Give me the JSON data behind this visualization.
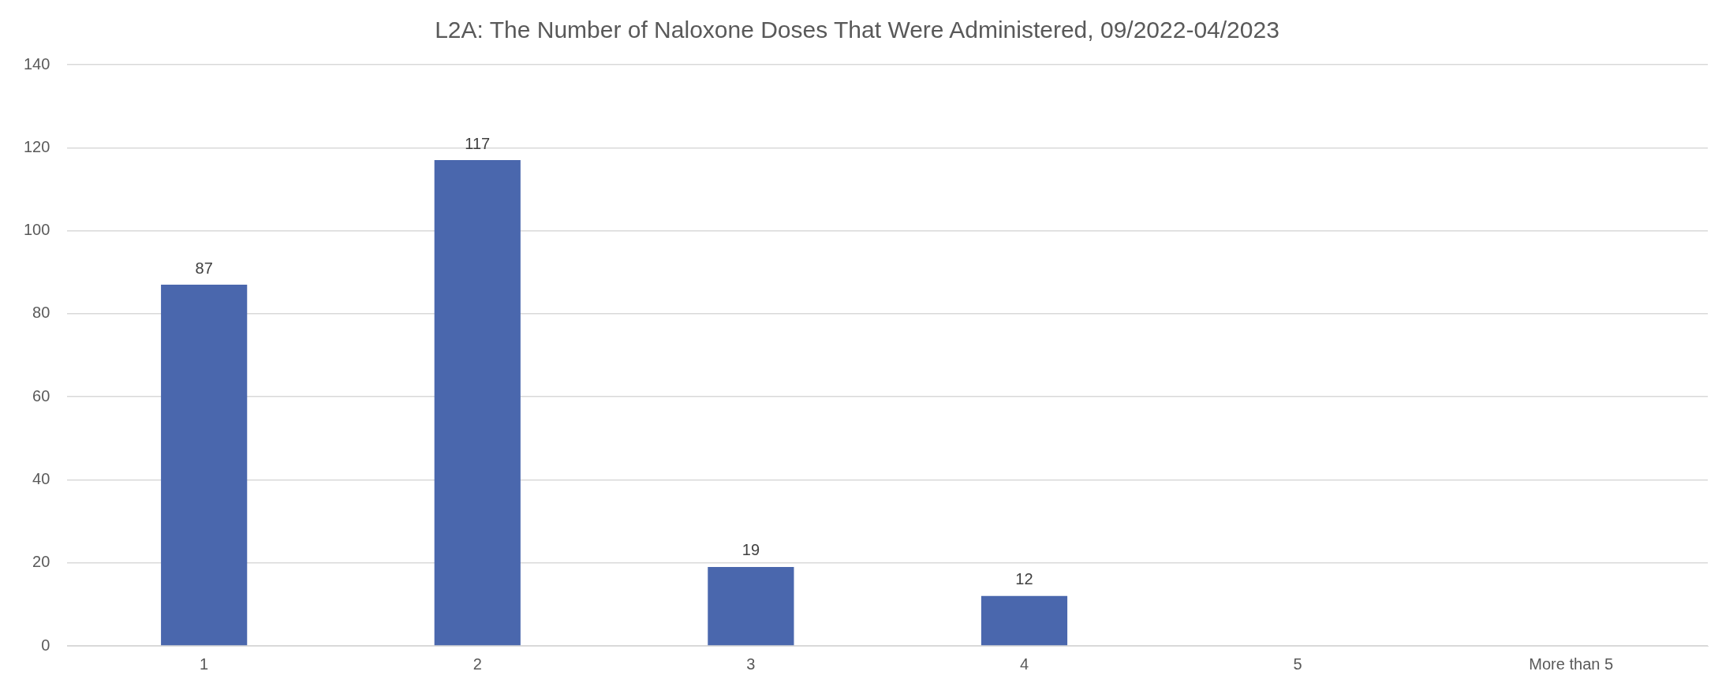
{
  "chart_data": {
    "type": "bar",
    "title": "L2A: The Number of Naloxone Doses That Were Administered, 09/2022-04/2023",
    "categories": [
      "1",
      "2",
      "3",
      "4",
      "5",
      "More than 5"
    ],
    "values": [
      87,
      117,
      19,
      12,
      null,
      null
    ],
    "value_labels": [
      "87",
      "117",
      "19",
      "12",
      null,
      null
    ],
    "color": "#4a67ad",
    "ylim": [
      0,
      140
    ],
    "yticks": [
      0,
      20,
      40,
      60,
      80,
      100,
      120,
      140
    ],
    "grid": "y",
    "legend": false
  }
}
